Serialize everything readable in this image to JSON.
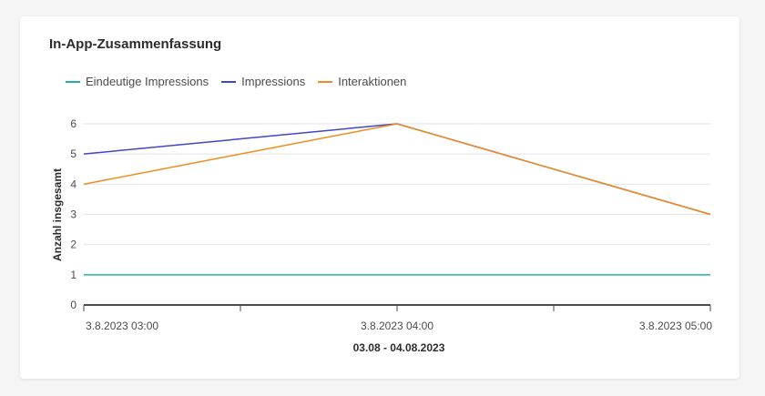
{
  "card": {
    "title": "In-App-Zusammenfassung"
  },
  "chart_data": {
    "type": "line",
    "title": "In-App-Zusammenfassung",
    "xlabel": "03.08 - 04.08.2023",
    "ylabel": "Anzahl insgesamt",
    "x": [
      "3.8.2023 03:00",
      "3.8.2023 04:00",
      "3.8.2023 05:00"
    ],
    "ylim": [
      0,
      6
    ],
    "yticks": [
      0,
      1,
      2,
      3,
      4,
      5,
      6
    ],
    "grid": true,
    "legend": "top-left",
    "series": [
      {
        "name": "Eindeutige Impressions",
        "color": "#1fb3a8",
        "values": [
          1,
          1,
          1
        ]
      },
      {
        "name": "Impressions",
        "color": "#4046ca",
        "values": [
          5,
          6,
          3
        ]
      },
      {
        "name": "Interaktionen",
        "color": "#f08b1d",
        "values": [
          4,
          6,
          3
        ]
      }
    ]
  }
}
